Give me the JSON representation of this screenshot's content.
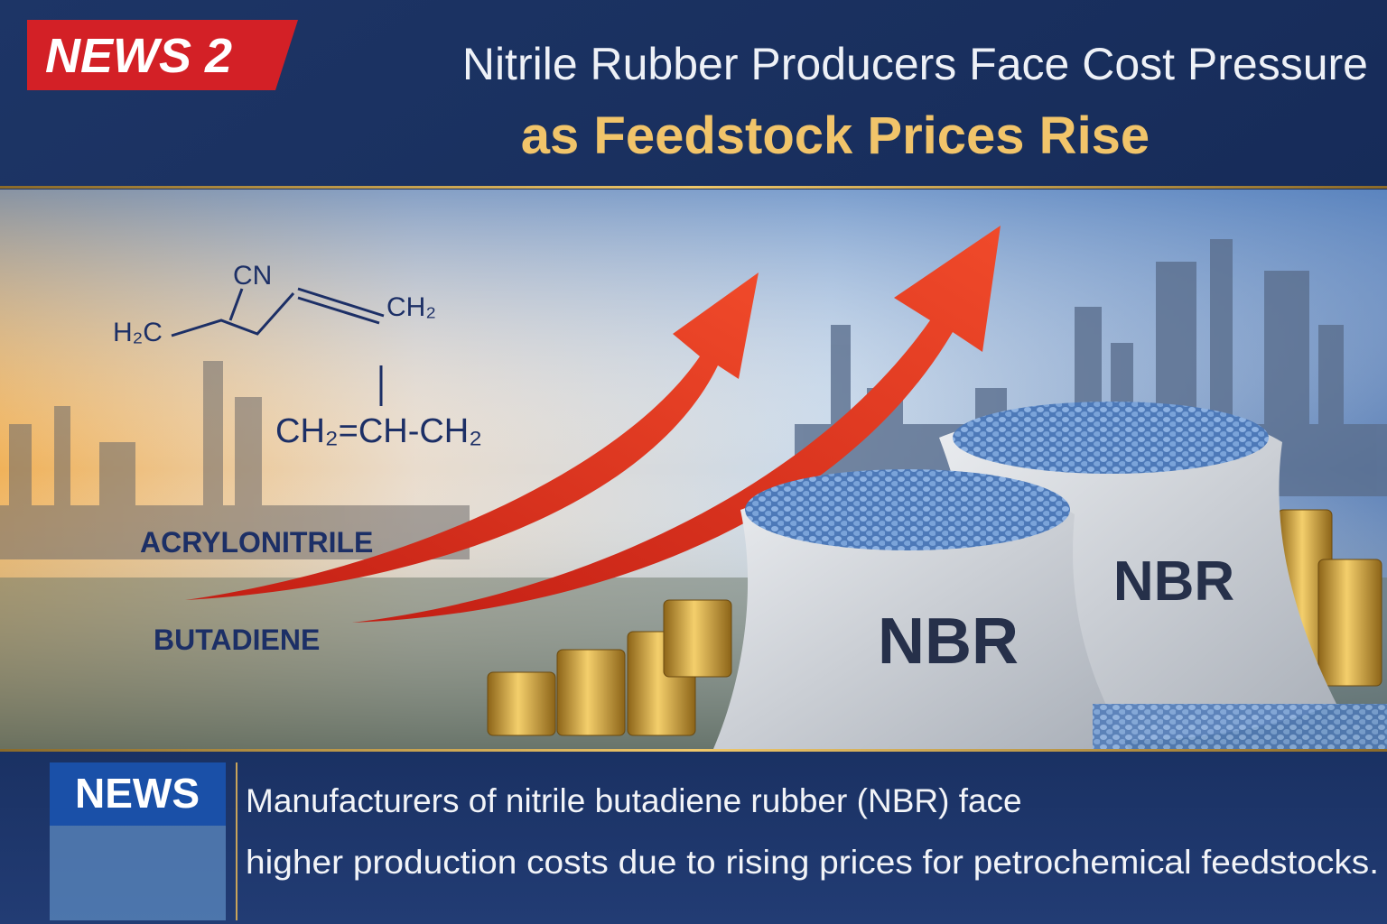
{
  "header": {
    "badge": "NEWS 2",
    "title": "Nitrile Rubber Producers Face Cost Pressure",
    "subtitle": "as Feedstock Prices Rise"
  },
  "illustration": {
    "formulas": {
      "cn": "CN",
      "h2c": "H₂C",
      "ch2": "CH₂",
      "butadiene_formula": "CH₂=CH-CH₂"
    },
    "labels": [
      "ACRYLONITRILE",
      "BUTADIENE"
    ],
    "bags": [
      "NBR",
      "NBR"
    ]
  },
  "ticker": {
    "label": "NEWS",
    "lines": [
      "Manufacturers of nitrile butadiene rubber (NBR) face",
      "higher production costs due to rising prices for petrochemical feedstocks."
    ]
  }
}
